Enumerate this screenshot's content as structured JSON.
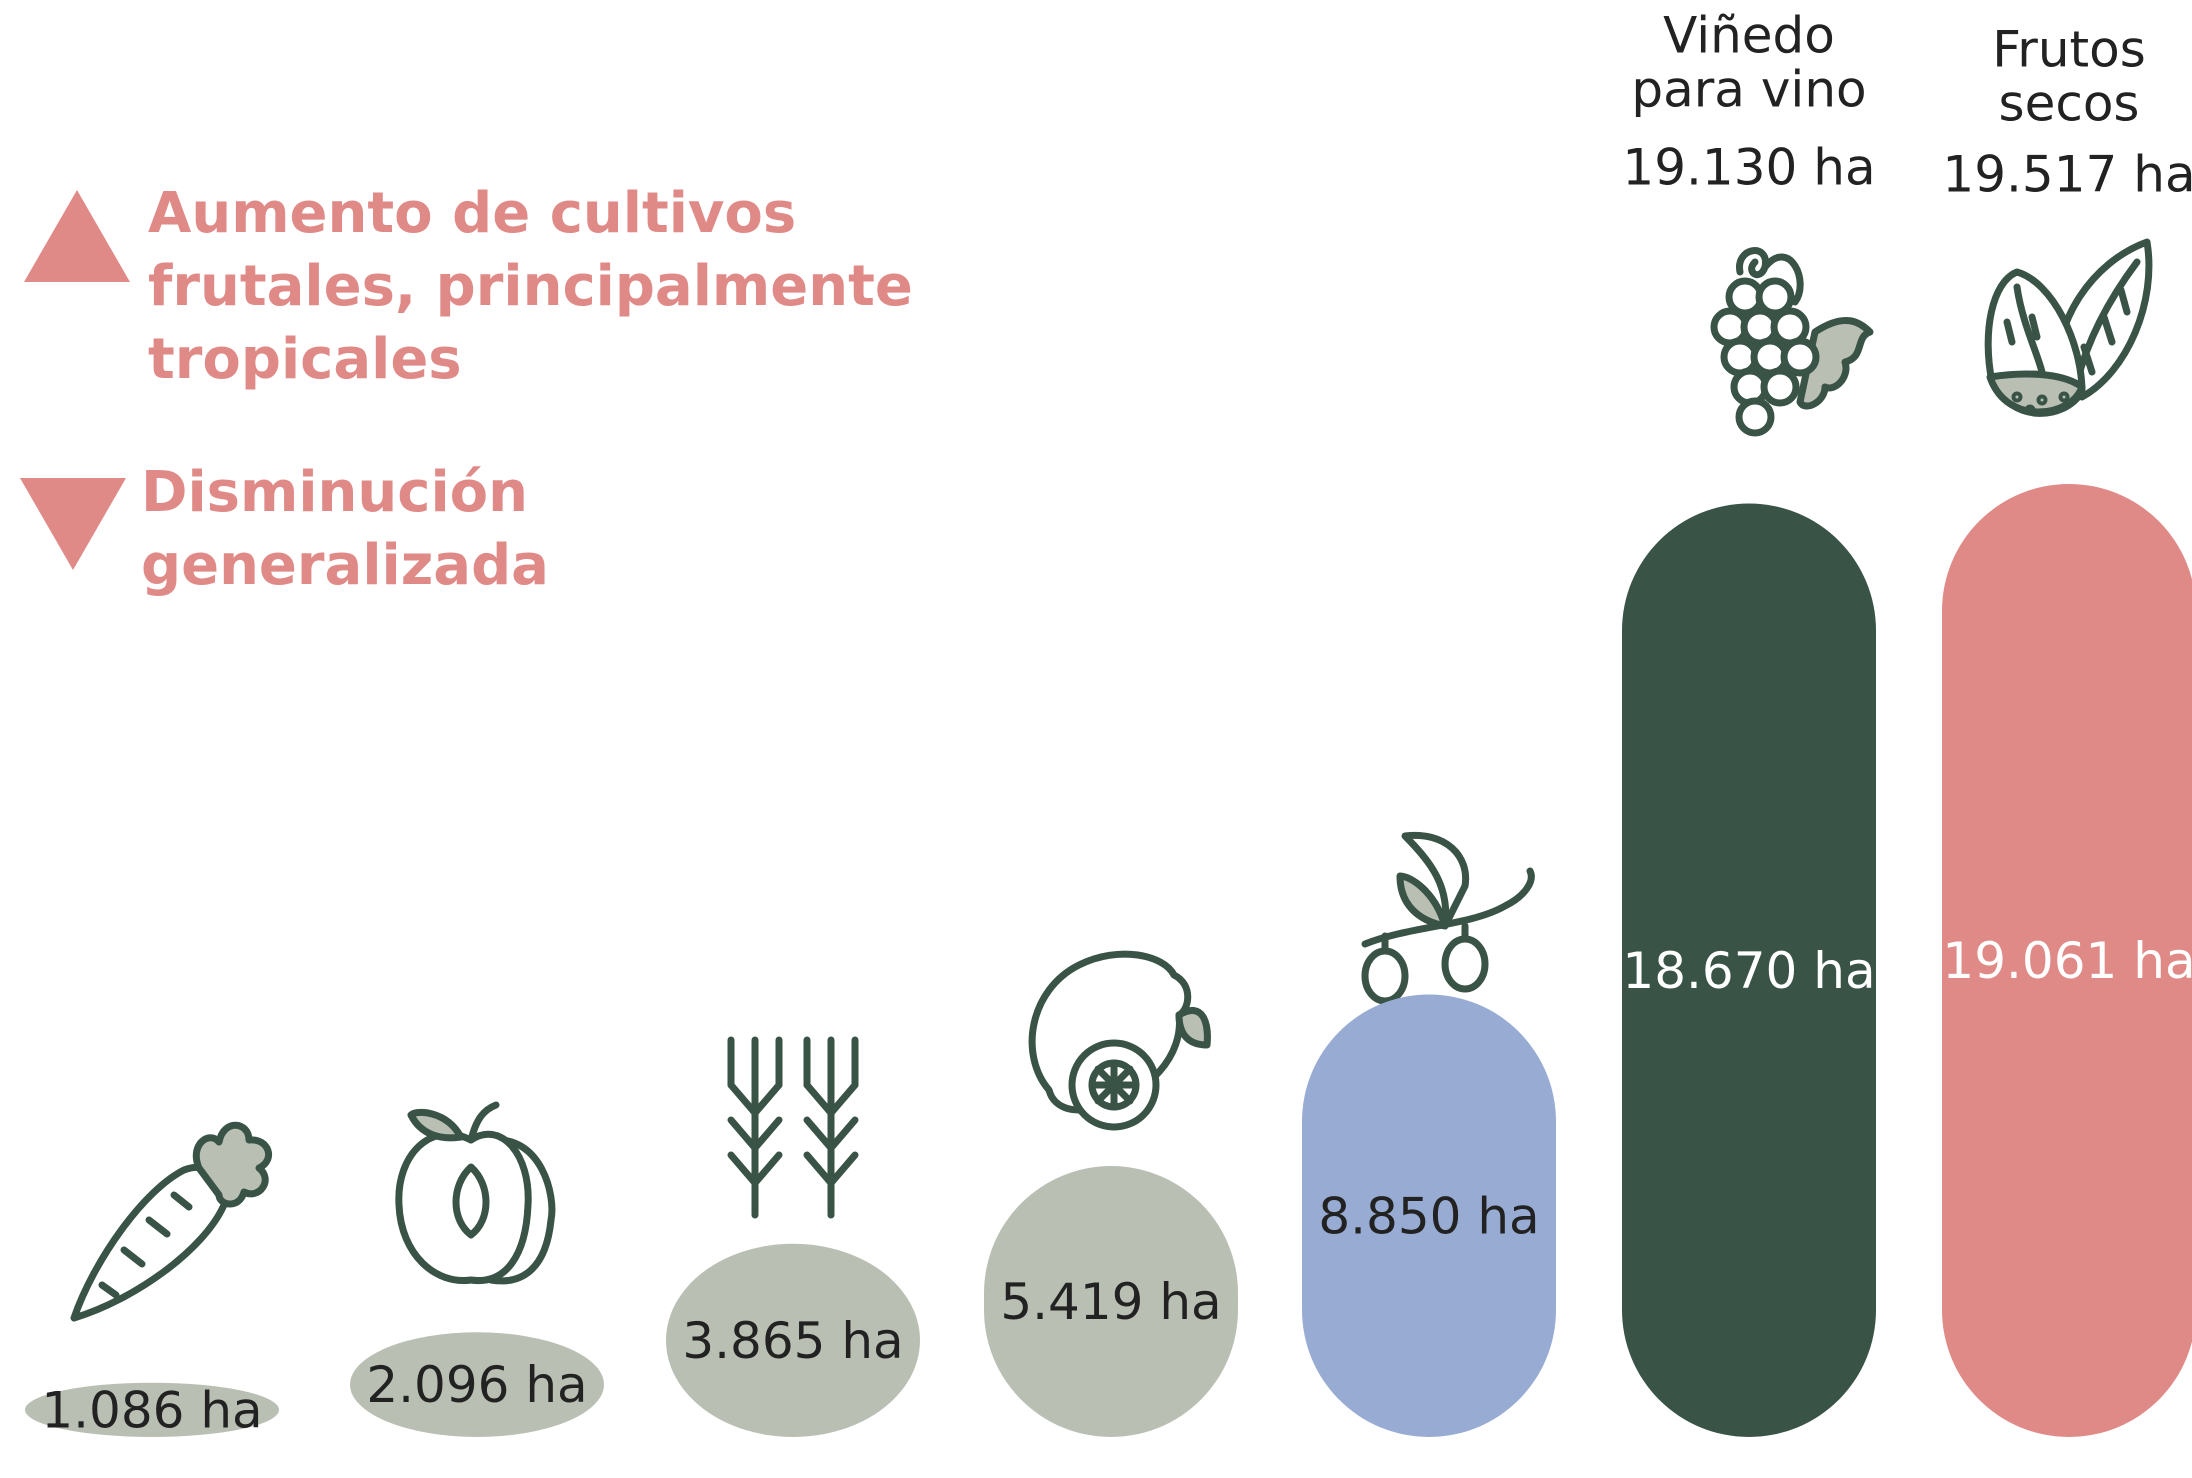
{
  "chart_data": {
    "type": "bar",
    "legend": [
      {
        "symbol": "up",
        "lines": [
          "Aumento de cultivos",
          "frutales, principalmente",
          "tropicales"
        ]
      },
      {
        "symbol": "down",
        "lines": [
          "Disminución",
          "generalizada"
        ]
      }
    ],
    "categories": [
      null,
      null,
      null,
      null,
      null,
      [
        "Viñedo",
        "para vino"
      ],
      [
        "Frutos",
        "secos"
      ]
    ],
    "top_labels": [
      null,
      null,
      null,
      null,
      null,
      "19.130 ha",
      "19.517 ha"
    ],
    "values": [
      1086,
      2096,
      3865,
      5419,
      8850,
      18670,
      19061
    ],
    "value_labels": [
      "1.086 ha",
      "2.096 ha",
      "3.865 ha",
      "5.419 ha",
      "8.850 ha",
      "18.670 ha",
      "19.061 ha"
    ],
    "colors": [
      "#b9c0b3",
      "#b9c0b3",
      "#b9c0b3",
      "#b9c0b3",
      "#98acd3",
      "#3a5347",
      "#e08a88"
    ],
    "label_colors": [
      "#222222",
      "#222222",
      "#222222",
      "#222222",
      "#222222",
      "#ffffff",
      "#ffffff"
    ],
    "legend_color": "#e08a88"
  }
}
